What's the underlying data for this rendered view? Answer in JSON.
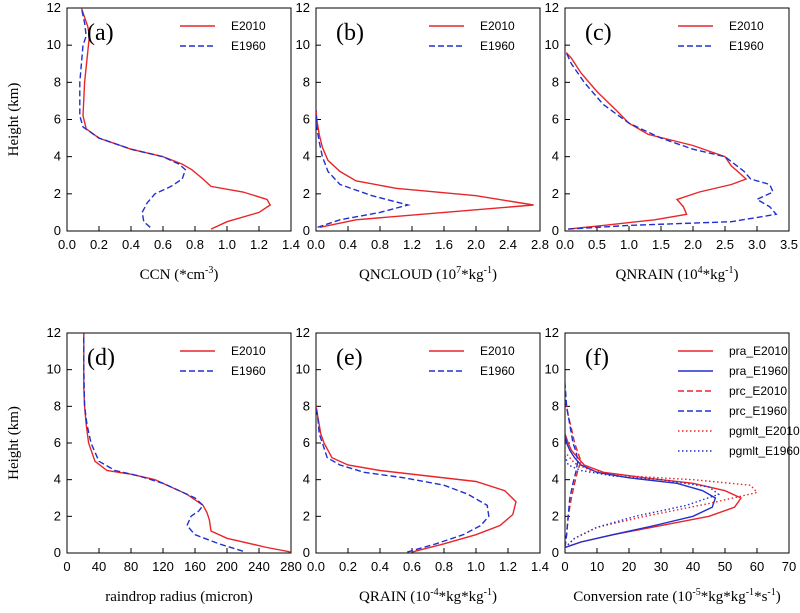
{
  "chart_data": [
    {
      "type": "line",
      "panel_label": "(a)",
      "xlabel": "CCN (*cm",
      "xlabel_sup": "-3",
      "xlabel_tail": ")",
      "ylabel": "Height (km)",
      "xlim": [
        0,
        1.4
      ],
      "xticks": [
        "0.0",
        "0.2",
        "0.4",
        "0.6",
        "0.8",
        "1.0",
        "1.2",
        "1.4"
      ],
      "ylim": [
        0,
        12
      ],
      "yticks": [
        "0",
        "2",
        "4",
        "6",
        "8",
        "10",
        "12"
      ],
      "legend": [
        {
          "label": "E2010",
          "color": "#e8262a",
          "dash": "solid"
        },
        {
          "label": "E1960",
          "color": "#2030d0",
          "dash": "dashed"
        }
      ],
      "series": [
        {
          "name": "E2010",
          "color": "#e8262a",
          "dash": "solid",
          "x": [
            0.9,
            1.0,
            1.2,
            1.27,
            1.25,
            1.1,
            0.9,
            0.85,
            0.78,
            0.72,
            0.6,
            0.4,
            0.2,
            0.12,
            0.1,
            0.11,
            0.14,
            0.13,
            0.11,
            0.09
          ],
          "y": [
            0.1,
            0.5,
            1.0,
            1.4,
            1.7,
            2.1,
            2.4,
            2.8,
            3.3,
            3.6,
            4.0,
            4.4,
            5.0,
            5.5,
            6.2,
            8.0,
            10.5,
            11.0,
            11.5,
            12.0
          ]
        },
        {
          "name": "E1960",
          "color": "#2030d0",
          "dash": "dashed",
          "x": [
            0.52,
            0.48,
            0.47,
            0.5,
            0.55,
            0.65,
            0.72,
            0.74,
            0.7,
            0.6,
            0.4,
            0.2,
            0.1,
            0.08,
            0.08,
            0.1,
            0.12,
            0.11,
            0.09
          ],
          "y": [
            0.2,
            0.5,
            1.0,
            1.5,
            2.0,
            2.4,
            2.8,
            3.3,
            3.6,
            4.0,
            4.4,
            5.0,
            5.6,
            6.2,
            8.0,
            10.0,
            10.5,
            11.2,
            12.0
          ]
        }
      ]
    },
    {
      "type": "line",
      "panel_label": "(b)",
      "xlabel": "QNCLOUD (10",
      "xlabel_sup": "7",
      "xlabel_tail": "*kg",
      "xlabel_sup2": "-1",
      "xlabel_tail2": ")",
      "xlim": [
        0,
        2.8
      ],
      "xticks": [
        "0.0",
        "0.4",
        "0.8",
        "1.2",
        "1.6",
        "2.0",
        "2.4",
        "2.8"
      ],
      "ylim": [
        0,
        12
      ],
      "yticks": [
        "0",
        "2",
        "4",
        "6",
        "8",
        "10",
        "12"
      ],
      "legend": [
        {
          "label": "E2010",
          "color": "#e8262a",
          "dash": "solid"
        },
        {
          "label": "E1960",
          "color": "#2030d0",
          "dash": "dashed"
        }
      ],
      "series": [
        {
          "name": "E2010",
          "color": "#e8262a",
          "dash": "solid",
          "x": [
            0.05,
            0.5,
            1.6,
            2.72,
            2.0,
            1.0,
            0.5,
            0.3,
            0.15,
            0.08,
            0.04,
            0.01,
            0.0
          ],
          "y": [
            0.2,
            0.6,
            1.0,
            1.4,
            1.9,
            2.3,
            2.7,
            3.2,
            3.8,
            4.5,
            5.2,
            6.0,
            6.5
          ]
        },
        {
          "name": "E1960",
          "color": "#2030d0",
          "dash": "dashed",
          "x": [
            0.02,
            0.3,
            0.8,
            1.15,
            0.7,
            0.3,
            0.15,
            0.08,
            0.04,
            0.01,
            0.0
          ],
          "y": [
            0.2,
            0.6,
            1.0,
            1.4,
            1.9,
            2.5,
            3.2,
            4.0,
            4.8,
            5.6,
            6.5
          ]
        }
      ]
    },
    {
      "type": "line",
      "panel_label": "(c)",
      "xlabel": "QNRAIN (10",
      "xlabel_sup": "4",
      "xlabel_tail": "*kg",
      "xlabel_sup2": "-1",
      "xlabel_tail2": ")",
      "xlim": [
        0,
        3.5
      ],
      "xticks": [
        "0.0",
        "0.5",
        "1.0",
        "1.5",
        "2.0",
        "2.5",
        "3.0",
        "3.5"
      ],
      "ylim": [
        0,
        12
      ],
      "yticks": [
        "0",
        "2",
        "4",
        "6",
        "8",
        "10",
        "12"
      ],
      "legend": [
        {
          "label": "E2010",
          "color": "#e8262a",
          "dash": "solid"
        },
        {
          "label": "E1960",
          "color": "#2030d0",
          "dash": "dashed"
        }
      ],
      "series": [
        {
          "name": "E2010",
          "color": "#e8262a",
          "dash": "solid",
          "x": [
            0.05,
            0.6,
            1.4,
            1.9,
            1.85,
            1.75,
            2.1,
            2.6,
            2.83,
            2.7,
            2.6,
            2.5,
            2.0,
            1.3,
            1.0,
            0.8,
            0.5,
            0.25,
            0.1,
            0.02
          ],
          "y": [
            0.1,
            0.3,
            0.6,
            0.9,
            1.3,
            1.7,
            2.1,
            2.5,
            2.8,
            3.2,
            3.5,
            4.0,
            4.6,
            5.2,
            5.8,
            6.5,
            7.5,
            8.5,
            9.3,
            9.6
          ]
        },
        {
          "name": "E1960",
          "color": "#2030d0",
          "dash": "dashed",
          "x": [
            0.05,
            1.0,
            2.6,
            3.3,
            3.2,
            3.0,
            3.25,
            3.2,
            2.9,
            2.8,
            2.5,
            2.0,
            1.5,
            1.0,
            0.6,
            0.3,
            0.1,
            0.02
          ],
          "y": [
            0.1,
            0.3,
            0.5,
            0.9,
            1.3,
            1.7,
            2.1,
            2.5,
            2.8,
            3.2,
            4.0,
            4.4,
            5.0,
            5.8,
            6.8,
            8.0,
            9.0,
            9.6
          ]
        }
      ]
    },
    {
      "type": "line",
      "panel_label": "(d)",
      "xlabel": "raindrop radius (micron)",
      "ylabel": "Height (km)",
      "xlim": [
        0,
        280
      ],
      "xticks": [
        "0",
        "40",
        "80",
        "120",
        "160",
        "200",
        "240",
        "280"
      ],
      "ylim": [
        0,
        12
      ],
      "yticks": [
        "0",
        "2",
        "4",
        "6",
        "8",
        "10",
        "12"
      ],
      "legend": [
        {
          "label": "E2010",
          "color": "#e8262a",
          "dash": "solid"
        },
        {
          "label": "E1960",
          "color": "#2030d0",
          "dash": "dashed"
        }
      ],
      "series": [
        {
          "name": "E2010",
          "color": "#e8262a",
          "dash": "solid",
          "x": [
            280,
            250,
            200,
            180,
            178,
            175,
            170,
            150,
            110,
            80,
            50,
            35,
            27,
            24,
            22,
            21,
            21,
            21
          ],
          "y": [
            0.05,
            0.3,
            0.8,
            1.2,
            1.8,
            2.2,
            2.6,
            3.2,
            4.0,
            4.3,
            4.5,
            5.0,
            6.0,
            7.0,
            8.0,
            9.0,
            10.5,
            12.0
          ]
        },
        {
          "name": "E1960",
          "color": "#2030d0",
          "dash": "dashed",
          "x": [
            220,
            190,
            160,
            150,
            155,
            165,
            170,
            160,
            120,
            90,
            60,
            40,
            30,
            25,
            22,
            21,
            21
          ],
          "y": [
            0.1,
            0.5,
            1.0,
            1.5,
            2.0,
            2.3,
            2.6,
            3.0,
            3.8,
            4.2,
            4.5,
            5.0,
            6.0,
            7.0,
            8.0,
            10.0,
            12.0
          ]
        }
      ]
    },
    {
      "type": "line",
      "panel_label": "(e)",
      "xlabel": "QRAIN (10",
      "xlabel_sup": "-4",
      "xlabel_tail": "*kg*kg",
      "xlabel_sup2": "-1",
      "xlabel_tail2": ")",
      "xlim": [
        0,
        1.4
      ],
      "xticks": [
        "0.0",
        "0.2",
        "0.4",
        "0.6",
        "0.8",
        "1.0",
        "1.2",
        "1.4"
      ],
      "ylim": [
        0,
        12
      ],
      "yticks": [
        "0",
        "2",
        "4",
        "6",
        "8",
        "10",
        "12"
      ],
      "legend": [
        {
          "label": "E2010",
          "color": "#e8262a",
          "dash": "solid"
        },
        {
          "label": "E1960",
          "color": "#2030d0",
          "dash": "dashed"
        }
      ],
      "series": [
        {
          "name": "E2010",
          "color": "#e8262a",
          "dash": "solid",
          "x": [
            0.6,
            0.8,
            1.0,
            1.15,
            1.23,
            1.25,
            1.18,
            1.0,
            0.7,
            0.4,
            0.2,
            0.1,
            0.05,
            0.03,
            0.01,
            0.0
          ],
          "y": [
            0.05,
            0.5,
            1.0,
            1.5,
            2.1,
            2.8,
            3.4,
            3.9,
            4.2,
            4.5,
            4.8,
            5.2,
            6.0,
            6.5,
            7.5,
            8.0
          ]
        },
        {
          "name": "E1960",
          "color": "#2030d0",
          "dash": "dashed",
          "x": [
            0.57,
            0.75,
            0.92,
            1.03,
            1.08,
            1.07,
            0.95,
            0.8,
            0.55,
            0.3,
            0.15,
            0.07,
            0.04,
            0.02,
            0.01,
            0.0
          ],
          "y": [
            0.05,
            0.5,
            1.0,
            1.5,
            2.0,
            2.6,
            3.2,
            3.7,
            4.1,
            4.4,
            4.8,
            5.2,
            6.0,
            6.5,
            7.5,
            8.0
          ]
        }
      ]
    },
    {
      "type": "line",
      "panel_label": "(f)",
      "xlabel": "Conversion rate (10",
      "xlabel_sup": "-5",
      "xlabel_tail": "*kg*kg",
      "xlabel_sup2": "-1",
      "xlabel_tail2": "*s",
      "xlabel_sup3": "-1",
      "xlabel_tail3": ")",
      "xlim": [
        0,
        70
      ],
      "xticks": [
        "0",
        "10",
        "20",
        "30",
        "40",
        "50",
        "60",
        "70"
      ],
      "ylim": [
        0,
        12
      ],
      "yticks": [
        "0",
        "2",
        "4",
        "6",
        "8",
        "10",
        "12"
      ],
      "legend": [
        {
          "label": "pra_E2010",
          "color": "#e8262a",
          "dash": "solid"
        },
        {
          "label": "pra_E1960",
          "color": "#2030d0",
          "dash": "solid"
        },
        {
          "label": "prc_E2010",
          "color": "#e8262a",
          "dash": "dashed"
        },
        {
          "label": "prc_E1960",
          "color": "#2030d0",
          "dash": "dashed"
        },
        {
          "label": "pgmlt_E2010",
          "color": "#e8262a",
          "dash": "dotted"
        },
        {
          "label": "pgmlt_E1960",
          "color": "#2030d0",
          "dash": "dotted"
        }
      ],
      "series": [
        {
          "name": "pra_E2010",
          "color": "#e8262a",
          "dash": "solid",
          "x": [
            0,
            5,
            15,
            30,
            45,
            53,
            55,
            50,
            40,
            25,
            12,
            6,
            4,
            2,
            1,
            0
          ],
          "y": [
            0.3,
            0.6,
            1.0,
            1.5,
            2.0,
            2.5,
            3.0,
            3.4,
            3.8,
            4.1,
            4.4,
            4.8,
            5.2,
            5.6,
            6.0,
            6.5
          ]
        },
        {
          "name": "pra_E1960",
          "color": "#2030d0",
          "dash": "solid",
          "x": [
            0,
            5,
            15,
            28,
            40,
            46,
            47,
            43,
            35,
            20,
            10,
            5,
            3,
            1.5,
            0.5,
            0
          ],
          "y": [
            0.3,
            0.6,
            1.0,
            1.5,
            2.0,
            2.5,
            3.0,
            3.4,
            3.8,
            4.1,
            4.4,
            4.8,
            5.2,
            5.6,
            6.0,
            6.5
          ]
        },
        {
          "name": "prc_E2010",
          "color": "#e8262a",
          "dash": "dashed",
          "x": [
            0,
            0.5,
            1,
            2,
            3,
            4,
            5,
            4,
            3,
            2,
            1,
            0
          ],
          "y": [
            0.3,
            1.0,
            2.0,
            3.0,
            3.8,
            4.5,
            5.0,
            5.5,
            6.0,
            6.8,
            7.5,
            8.5
          ]
        },
        {
          "name": "prc_E1960",
          "color": "#2030d0",
          "dash": "dashed",
          "x": [
            0,
            0.5,
            1,
            1.5,
            2.5,
            3.5,
            4,
            3.5,
            2.5,
            1.5,
            0.5,
            0
          ],
          "y": [
            0.3,
            1.0,
            2.0,
            3.0,
            3.8,
            4.5,
            5.0,
            5.5,
            6.0,
            7.0,
            8.0,
            9.3
          ]
        },
        {
          "name": "pgmlt_E2010",
          "color": "#e8262a",
          "dash": "dotted",
          "x": [
            0,
            3,
            10,
            25,
            45,
            60,
            58,
            40,
            20,
            8,
            3,
            0
          ],
          "y": [
            0.3,
            0.8,
            1.4,
            2.0,
            2.7,
            3.3,
            3.7,
            4.0,
            4.2,
            4.5,
            4.9,
            5.5
          ]
        },
        {
          "name": "pgmlt_E1960",
          "color": "#2030d0",
          "dash": "dotted",
          "x": [
            0,
            3,
            10,
            22,
            38,
            48,
            45,
            30,
            15,
            5,
            1,
            0
          ],
          "y": [
            0.3,
            0.8,
            1.4,
            2.0,
            2.6,
            3.2,
            3.6,
            4.0,
            4.2,
            4.5,
            4.8,
            5.3
          ]
        }
      ]
    }
  ]
}
